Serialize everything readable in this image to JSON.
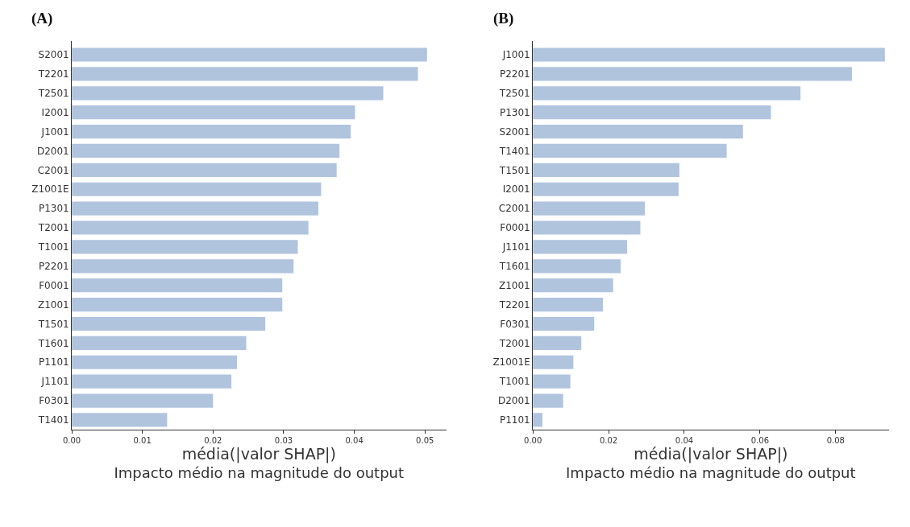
{
  "chart_data": [
    {
      "type": "bar",
      "orientation": "horizontal",
      "title": "(A)",
      "xlabel": "média(|valor SHAP|)\nImpacto médio na magnitude do output",
      "color": "#b0c4de",
      "categories": [
        "S2001",
        "T2201",
        "T2501",
        "I2001",
        "J1001",
        "D2001",
        "C2001",
        "Z1001E",
        "P1301",
        "T2001",
        "T1001",
        "P2201",
        "F0001",
        "Z1001",
        "T1501",
        "T1601",
        "P1101",
        "J1101",
        "F0301",
        "T1401"
      ],
      "values": [
        0.0503,
        0.049,
        0.0441,
        0.0401,
        0.0395,
        0.0379,
        0.0375,
        0.0353,
        0.0349,
        0.0335,
        0.032,
        0.0314,
        0.0298,
        0.0298,
        0.0274,
        0.0247,
        0.0234,
        0.0226,
        0.02,
        0.0135
      ],
      "xlim": [
        0,
        0.053
      ],
      "xticks": [
        {
          "value": 0,
          "label": "0.00"
        },
        {
          "value": 0.01,
          "label": "0.01"
        },
        {
          "value": 0.02,
          "label": "0.02"
        },
        {
          "value": 0.03,
          "label": "0.03"
        },
        {
          "value": 0.04,
          "label": "0.04"
        },
        {
          "value": 0.05,
          "label": "0.05"
        }
      ]
    },
    {
      "type": "bar",
      "orientation": "horizontal",
      "title": "(B)",
      "xlabel": "média(|valor SHAP|)\nImpacto médio na magnitude do output",
      "color": "#b0c4de",
      "categories": [
        "J1001",
        "P2201",
        "T2501",
        "P1301",
        "S2001",
        "T1401",
        "T1501",
        "I2001",
        "C2001",
        "F0001",
        "J1101",
        "T1601",
        "Z1001",
        "T2201",
        "F0301",
        "T2001",
        "Z1001E",
        "T1001",
        "D2001",
        "P1101"
      ],
      "values": [
        0.093,
        0.0843,
        0.0707,
        0.0629,
        0.0555,
        0.0512,
        0.0387,
        0.0385,
        0.0296,
        0.0284,
        0.0249,
        0.0232,
        0.0212,
        0.0185,
        0.0162,
        0.0128,
        0.0107,
        0.0099,
        0.008,
        0.0025
      ],
      "xlim": [
        0,
        0.094
      ],
      "xticks": [
        {
          "value": 0,
          "label": "0.00"
        },
        {
          "value": 0.02,
          "label": "0.02"
        },
        {
          "value": 0.04,
          "label": "0.04"
        },
        {
          "value": 0.06,
          "label": "0.06"
        },
        {
          "value": 0.08,
          "label": "0.08"
        }
      ]
    }
  ]
}
